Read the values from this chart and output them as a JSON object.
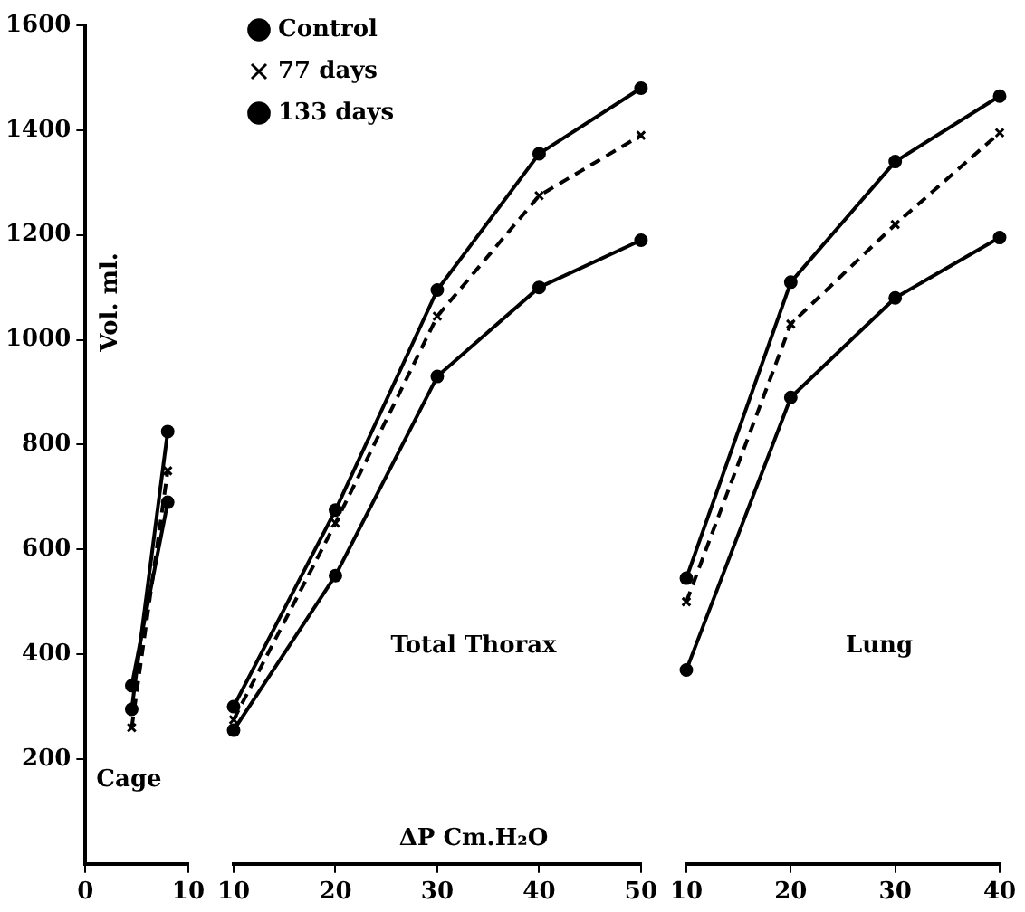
{
  "chart_data": [
    {
      "type": "line",
      "ylabel": "Vol. ml.",
      "annotations": [
        "Cage"
      ],
      "x": [
        4.5,
        8
      ],
      "xlim": [
        0,
        10
      ],
      "xticks": [
        0,
        10
      ],
      "ylim": [
        0,
        1600
      ],
      "yticks": [
        200,
        400,
        600,
        800,
        1000,
        1200,
        1400,
        1600
      ],
      "grid": false,
      "legend": false,
      "series": [
        {
          "color": "#000000",
          "marker": "circle",
          "line_style": "solid",
          "values": [
            340,
            690
          ]
        },
        {
          "color": "#000000",
          "marker": "cross",
          "line_style": "dashed",
          "values": [
            260,
            750
          ]
        },
        {
          "color": "#000000",
          "marker": "circle",
          "line_style": "solid",
          "values": [
            295,
            825
          ]
        }
      ]
    },
    {
      "type": "line",
      "xlabel": "ΔP Cm.H₂O",
      "annotations": [
        "Total Thorax"
      ],
      "x": [
        10,
        20,
        30,
        40,
        50
      ],
      "xlim": [
        10,
        50
      ],
      "xticks": [
        10,
        20,
        30,
        40,
        50
      ],
      "ylim": [
        0,
        1600
      ],
      "tick_labels": "x",
      "grid": false,
      "legend": "top left",
      "series": [
        {
          "name": "Control",
          "color": "#000000",
          "marker": "circle",
          "line_style": "solid",
          "values": [
            300,
            675,
            1095,
            1355,
            1480
          ]
        },
        {
          "name": "77 days",
          "color": "#000000",
          "marker": "cross",
          "line_style": "dashed",
          "values": [
            275,
            650,
            1045,
            1275,
            1390
          ]
        },
        {
          "name": "133 days",
          "color": "#000000",
          "marker": "circle",
          "line_style": "solid",
          "values": [
            255,
            550,
            930,
            1100,
            1190
          ]
        }
      ]
    },
    {
      "type": "line",
      "annotations": [
        "Lung"
      ],
      "x": [
        10,
        20,
        30,
        40
      ],
      "xlim": [
        10,
        40
      ],
      "xticks": [
        10,
        20,
        30,
        40
      ],
      "ylim": [
        0,
        1600
      ],
      "tick_labels": "x",
      "grid": false,
      "legend": false,
      "series": [
        {
          "color": "#000000",
          "marker": "circle",
          "line_style": "solid",
          "values": [
            545,
            1110,
            1340,
            1465
          ]
        },
        {
          "color": "#000000",
          "marker": "cross",
          "line_style": "dashed",
          "values": [
            500,
            1030,
            1220,
            1395
          ]
        },
        {
          "color": "#000000",
          "marker": "circle",
          "line_style": "solid",
          "values": [
            370,
            890,
            1080,
            1195
          ]
        }
      ]
    }
  ]
}
